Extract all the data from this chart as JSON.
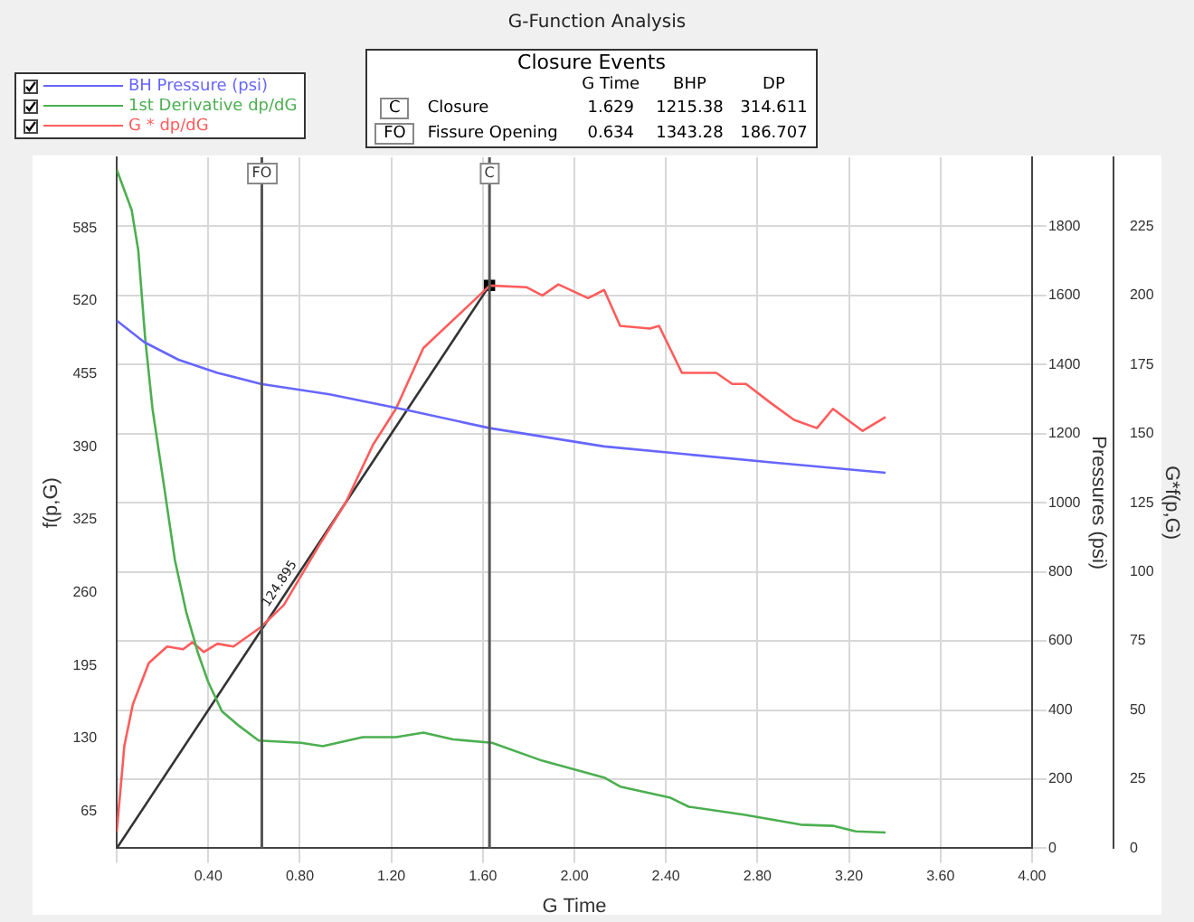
{
  "chart_data": {
    "type": "line",
    "title": "G-Function Analysis",
    "xlabel": "G Time",
    "ylabel": "f(p,G)",
    "y2label": "Pressures (psi)",
    "y3label": "G*f(p,G)",
    "xlim": [
      0,
      4
    ],
    "xticks": [
      {
        "value": 0,
        "label": null
      },
      {
        "value": 0.4,
        "label": "0.40"
      },
      {
        "value": 0.8,
        "label": "0.80"
      },
      {
        "value": 1.2,
        "label": "1.20"
      },
      {
        "value": 1.6,
        "label": "1.60"
      },
      {
        "value": 2.0,
        "label": "2.00"
      },
      {
        "value": 2.4,
        "label": "2.40"
      },
      {
        "value": 2.8,
        "label": "2.80"
      },
      {
        "value": 3.2,
        "label": "3.20"
      },
      {
        "value": 3.6,
        "label": "3.60"
      },
      {
        "value": 4.0,
        "label": "4.00"
      }
    ],
    "ylim": [
      32,
      648
    ],
    "yticks": [
      65,
      130,
      195,
      260,
      325,
      390,
      455,
      520,
      585
    ],
    "y2lim": [
      0,
      2000
    ],
    "y2ticks": [
      0,
      200,
      400,
      600,
      800,
      1000,
      1200,
      1400,
      1600,
      1800
    ],
    "y3lim": [
      0,
      250
    ],
    "y3ticks": [
      0,
      25,
      50,
      75,
      100,
      125,
      150,
      175,
      200,
      225
    ],
    "grid": true,
    "legend": "top left",
    "marker": "none",
    "line_style": "solid",
    "series": [
      {
        "name": "BH Pressure (psi)",
        "color": "#6666ff",
        "axis": "y2",
        "x": [
          0,
          0.12,
          0.27,
          0.44,
          0.63,
          0.93,
          1.27,
          1.63,
          2.13,
          2.86,
          3.36
        ],
        "values": [
          1527,
          1465,
          1414,
          1376,
          1344,
          1314,
          1268,
          1216,
          1163,
          1117,
          1087
        ]
      },
      {
        "name": "1st Derivative dp/dG",
        "color": "#4caf50",
        "axis": "y",
        "x": [
          0,
          0.065,
          0.094,
          0.124,
          0.156,
          0.205,
          0.254,
          0.303,
          0.355,
          0.4,
          0.46,
          0.535,
          0.62,
          0.805,
          0.9,
          1.075,
          1.22,
          1.34,
          1.47,
          1.64,
          1.86,
          2.13,
          2.2,
          2.42,
          2.5,
          2.74,
          2.99,
          3.13,
          3.23,
          3.36
        ],
        "values": [
          637,
          601,
          565,
          487,
          424,
          357,
          289,
          243,
          206,
          180,
          154,
          141,
          128,
          126,
          123,
          131,
          131,
          135,
          129,
          126,
          110,
          95,
          87,
          77,
          69,
          62,
          53,
          52,
          47,
          46
        ]
      },
      {
        "name": "G * dp/dG",
        "color": "#ff5c5c",
        "axis": "y3",
        "x": [
          0,
          0.033,
          0.07,
          0.14,
          0.22,
          0.29,
          0.33,
          0.38,
          0.44,
          0.51,
          0.63,
          0.73,
          0.88,
          1.0,
          1.12,
          1.22,
          1.34,
          1.52,
          1.63,
          1.79,
          1.86,
          1.93,
          2.06,
          2.13,
          2.2,
          2.33,
          2.37,
          2.47,
          2.62,
          2.69,
          2.75,
          2.86,
          2.96,
          3.06,
          3.13,
          3.21,
          3.26,
          3.36
        ],
        "values": [
          6,
          37,
          52,
          67,
          73,
          72,
          74.5,
          71,
          74,
          73,
          80,
          88,
          109,
          125,
          146,
          159,
          181,
          195,
          203.6,
          203,
          200,
          204,
          199,
          202,
          189,
          188,
          189,
          172,
          172,
          168,
          168,
          161,
          155,
          152,
          159,
          154,
          151,
          156
        ]
      },
      {
        "type": "line",
        "color": "#333333",
        "axis": "y3",
        "x": [
          0,
          1.629
        ],
        "values": [
          0,
          203.6
        ]
      },
      {
        "type": "scatter",
        "color": "#000000",
        "axis": "y3",
        "marker": "square",
        "x": [
          1.629
        ],
        "values": [
          203.6
        ]
      }
    ],
    "ref_lines": [
      {
        "axis": "x",
        "value": 0.634,
        "label": "FO",
        "color": "#555555"
      },
      {
        "axis": "x",
        "value": 1.629,
        "label": "C",
        "color": "#555555"
      }
    ],
    "annotations": [
      "Closure Events",
      "G Time",
      "BHP",
      "DP",
      "C",
      "Closure",
      "1.629",
      "1215.38",
      "314.611",
      "FO",
      "Fissure Opening",
      "0.634",
      "1343.28",
      "186.707",
      "124.895"
    ]
  }
}
